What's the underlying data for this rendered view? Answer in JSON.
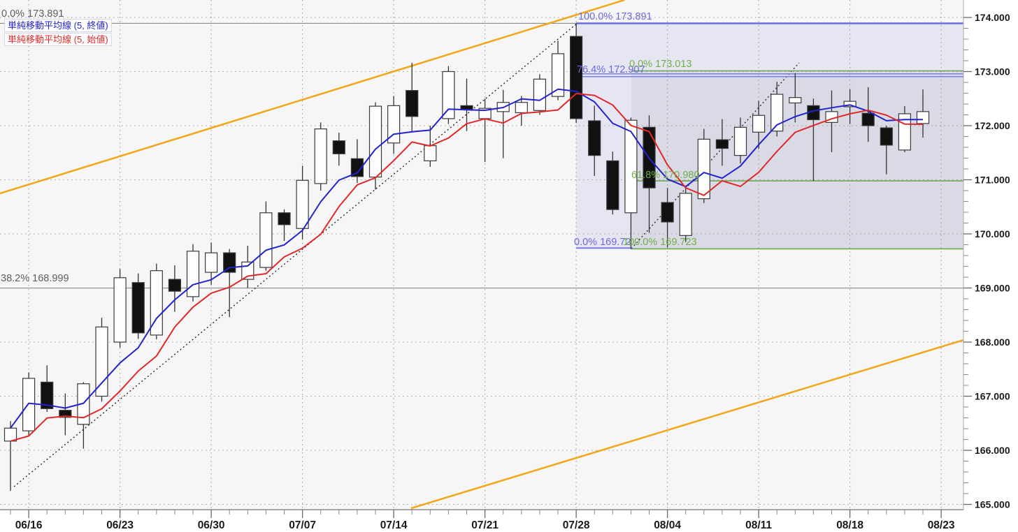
{
  "legend": {
    "items": [
      {
        "label": "単純移動平均線 (5, 終値)",
        "color": "#2323cc"
      },
      {
        "label": "単純移動平均線 (5, 始値)",
        "color": "#e02929"
      }
    ]
  },
  "y_axis": {
    "labels": [
      "174.000",
      "173.000",
      "172.000",
      "171.000",
      "170.000",
      "169.000",
      "168.000",
      "167.000",
      "166.000",
      "165.000"
    ],
    "values": [
      174,
      173,
      172,
      171,
      170,
      169,
      168,
      167,
      166,
      165
    ]
  },
  "x_axis": {
    "labels": [
      "06/16",
      "06/23",
      "06/30",
      "07/07",
      "07/14",
      "07/21",
      "07/28",
      "08/04",
      "08/11",
      "08/18",
      "08/23"
    ]
  },
  "fibonacci": {
    "gray": {
      "label_color": "#5e5e5e",
      "line_color": "#8a8a8a",
      "levels": [
        {
          "pct": "0.0%",
          "price": "173.891",
          "value": 173.891
        },
        {
          "pct": "38.2%",
          "price": "168.999",
          "value": 168.999
        }
      ]
    },
    "blue": {
      "label_color": "#6a6ae0",
      "line_color": "#7d7de8",
      "levels": [
        {
          "pct": "100.0%",
          "price": "173.891",
          "value": 173.891
        },
        {
          "pct": "76.4%",
          "price": "172.907",
          "value": 172.907
        },
        {
          "pct": "0.0%",
          "price": "169.72",
          "value": 169.72
        }
      ]
    },
    "green": {
      "label_color": "#6fae44",
      "line_color": "#6aa84f",
      "levels": [
        {
          "pct": "0.0%",
          "price": "173.013",
          "value": 173.013
        },
        {
          "pct": "61.8%",
          "price": "170.980",
          "value": 170.98
        },
        {
          "pct": "100.0%",
          "price": "169.723",
          "value": 169.723
        }
      ]
    }
  },
  "chart_data": {
    "type": "candlestick",
    "title": "",
    "ylabel": "",
    "ylim": [
      165.0,
      174.3
    ],
    "grid": true,
    "up_color": "#fdfdfd",
    "down_color": "#111111",
    "candle_border": "#3a3a3a",
    "dates": [
      "06/13",
      "06/16",
      "06/17",
      "06/18",
      "06/19",
      "06/20",
      "06/23",
      "06/24",
      "06/25",
      "06/26",
      "06/27",
      "06/30",
      "07/01",
      "07/02",
      "07/03",
      "07/04",
      "07/07",
      "07/08",
      "07/09",
      "07/10",
      "07/11",
      "07/14",
      "07/15",
      "07/16",
      "07/17",
      "07/18",
      "07/21",
      "07/22",
      "07/23",
      "07/24",
      "07/25",
      "07/28",
      "07/29",
      "07/30",
      "07/31",
      "08/01",
      "08/04",
      "08/05",
      "08/06",
      "08/07",
      "08/08",
      "08/11",
      "08/12",
      "08/13",
      "08/14",
      "08/15",
      "08/18",
      "08/19",
      "08/20",
      "08/21",
      "08/22"
    ],
    "ohlc": [
      [
        166.17,
        166.54,
        165.25,
        166.41
      ],
      [
        166.36,
        167.44,
        166.28,
        167.33
      ],
      [
        167.26,
        167.57,
        166.71,
        166.77
      ],
      [
        166.74,
        167.05,
        166.28,
        166.61
      ],
      [
        166.48,
        167.26,
        166.03,
        167.23
      ],
      [
        167.0,
        168.45,
        166.9,
        168.28
      ],
      [
        168.0,
        169.35,
        167.9,
        169.19
      ],
      [
        169.1,
        169.27,
        168.06,
        168.17
      ],
      [
        168.13,
        169.45,
        168.05,
        169.32
      ],
      [
        169.16,
        169.42,
        168.56,
        168.94
      ],
      [
        168.84,
        169.81,
        168.75,
        169.68
      ],
      [
        169.29,
        169.84,
        169.06,
        169.65
      ],
      [
        169.65,
        169.72,
        168.46,
        169.29
      ],
      [
        169.16,
        169.78,
        169.0,
        169.48
      ],
      [
        169.38,
        170.6,
        169.32,
        170.39
      ],
      [
        170.39,
        170.45,
        169.87,
        170.17
      ],
      [
        170.1,
        171.26,
        169.9,
        170.99
      ],
      [
        170.93,
        172.06,
        170.8,
        171.94
      ],
      [
        171.72,
        171.87,
        171.26,
        171.48
      ],
      [
        171.39,
        171.75,
        170.94,
        171.06
      ],
      [
        171.05,
        172.43,
        170.82,
        172.36
      ],
      [
        171.68,
        172.55,
        171.48,
        172.37
      ],
      [
        172.65,
        173.16,
        171.87,
        172.17
      ],
      [
        171.35,
        172.0,
        171.24,
        171.63
      ],
      [
        172.13,
        173.1,
        172.03,
        173.0
      ],
      [
        172.37,
        172.87,
        171.9,
        172.3
      ],
      [
        172.13,
        172.5,
        171.33,
        172.32
      ],
      [
        172.26,
        172.66,
        171.4,
        172.43
      ],
      [
        172.24,
        172.55,
        172.0,
        172.43
      ],
      [
        172.28,
        172.95,
        172.2,
        172.86
      ],
      [
        172.54,
        173.57,
        172.47,
        173.33
      ],
      [
        173.65,
        173.89,
        172.05,
        172.13
      ],
      [
        172.09,
        172.37,
        171.07,
        171.45
      ],
      [
        171.35,
        171.52,
        170.36,
        170.45
      ],
      [
        170.39,
        172.15,
        169.72,
        172.1
      ],
      [
        171.97,
        172.19,
        170.02,
        170.85
      ],
      [
        170.58,
        170.85,
        169.75,
        170.22
      ],
      [
        169.97,
        170.89,
        169.85,
        170.75
      ],
      [
        170.65,
        171.94,
        170.57,
        171.75
      ],
      [
        171.74,
        172.12,
        171.26,
        171.58
      ],
      [
        171.45,
        172.15,
        171.3,
        171.97
      ],
      [
        171.88,
        172.46,
        171.57,
        172.19
      ],
      [
        171.9,
        172.81,
        171.8,
        172.58
      ],
      [
        172.42,
        172.97,
        172.06,
        172.52
      ],
      [
        172.37,
        172.5,
        170.98,
        172.11
      ],
      [
        172.06,
        172.65,
        171.51,
        172.26
      ],
      [
        172.35,
        172.67,
        172.03,
        172.45
      ],
      [
        172.23,
        172.71,
        171.7,
        172.0
      ],
      [
        171.96,
        172.0,
        171.1,
        171.64
      ],
      [
        171.55,
        172.36,
        171.51,
        172.22
      ],
      [
        172.04,
        172.67,
        171.78,
        172.26
      ]
    ],
    "overlays": [
      {
        "name": "SMA(5, close)",
        "color": "#2323cc"
      },
      {
        "name": "SMA(5, open)",
        "color": "#e02929"
      }
    ],
    "trend_channel_color": "#f0a81f",
    "dotted_trendlines": 2,
    "legend_position": "top-left"
  }
}
